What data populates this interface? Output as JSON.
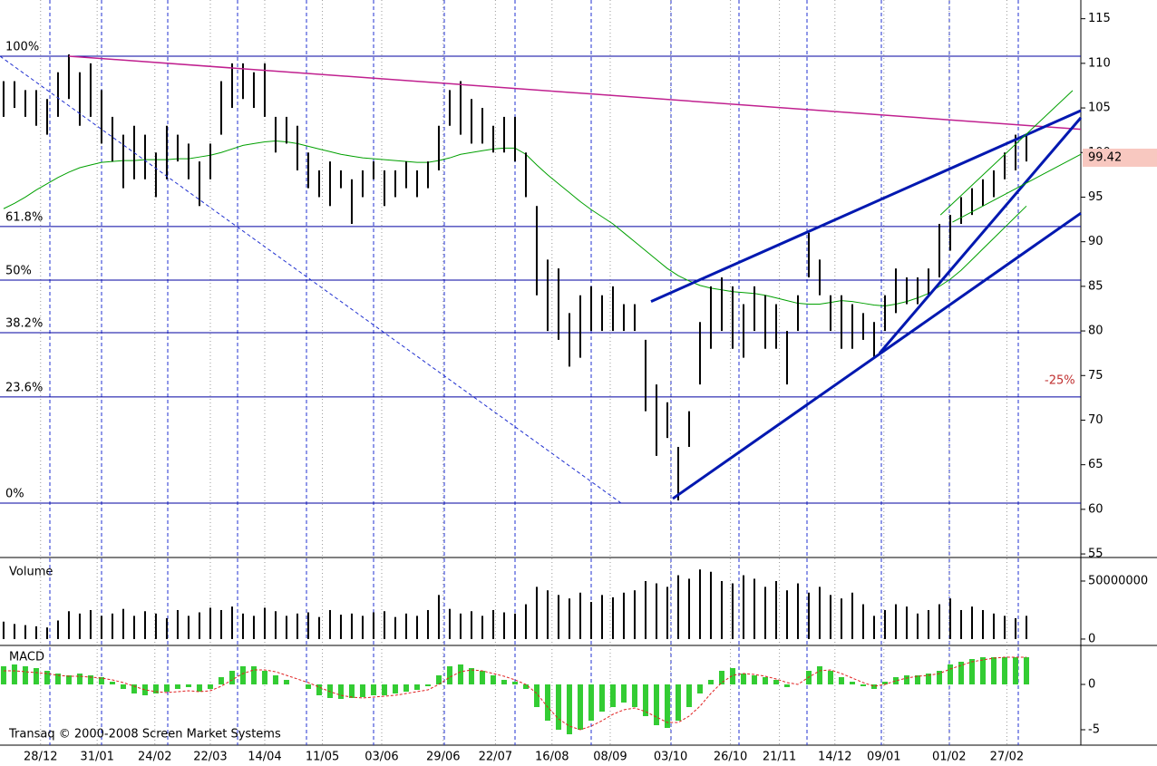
{
  "chart_data": [
    {
      "type": "range-bar",
      "xlim": [
        -0.33,
        99
      ],
      "ylim": [
        54.6,
        117.1
      ],
      "yticks": [
        55,
        60,
        65,
        70,
        75,
        80,
        85,
        90,
        95,
        100,
        105,
        110,
        115
      ],
      "color": "#000000",
      "high": [
        108,
        108,
        107,
        107,
        106,
        109,
        111,
        109,
        110,
        107,
        104,
        102,
        103,
        102,
        100,
        103,
        102,
        101,
        99,
        101,
        108,
        110,
        110,
        109,
        110,
        104,
        104,
        103,
        100,
        98,
        99,
        98,
        97,
        98,
        99,
        98,
        98,
        99,
        98,
        99,
        103,
        107,
        108,
        106,
        105,
        103,
        104,
        104,
        100,
        94,
        88,
        87,
        82,
        84,
        85,
        84,
        85,
        83,
        83,
        79,
        74,
        72,
        67,
        71,
        81,
        85,
        86,
        85,
        83,
        85,
        84,
        83,
        80,
        84,
        91,
        88,
        84,
        84,
        83,
        82,
        81,
        84,
        87,
        86,
        86,
        87,
        92,
        93,
        95,
        96,
        97,
        98,
        100,
        102,
        102
      ],
      "low": [
        104,
        105,
        104,
        103,
        102,
        104,
        106,
        103,
        104,
        101,
        99,
        96,
        97,
        97,
        95,
        97,
        99,
        97,
        94,
        97,
        102,
        105,
        106,
        105,
        104,
        100,
        101,
        98,
        96,
        95,
        94,
        96,
        92,
        95,
        97,
        94,
        95,
        96,
        95,
        96,
        98,
        103,
        102,
        101,
        101,
        100,
        100,
        99,
        95,
        84,
        80,
        79,
        76,
        77,
        80,
        80,
        80,
        80,
        80,
        71,
        66,
        68,
        61,
        67,
        74,
        78,
        80,
        78,
        77,
        80,
        78,
        78,
        74,
        80,
        86,
        84,
        80,
        78,
        78,
        79,
        77,
        80,
        82,
        83,
        83,
        84,
        86,
        89,
        92,
        93,
        94,
        95,
        97,
        98,
        99
      ],
      "ma": {
        "color": "#00a000",
        "values": [
          93.7,
          94.3,
          95,
          95.8,
          96.5,
          97.2,
          97.8,
          98.3,
          98.6,
          98.9,
          99,
          99.1,
          99.1,
          99.2,
          99.2,
          99.2,
          99.3,
          99.3,
          99.5,
          99.7,
          100,
          100.4,
          100.8,
          101,
          101.2,
          101.3,
          101.2,
          101,
          100.7,
          100.4,
          100.1,
          99.8,
          99.6,
          99.4,
          99.3,
          99.2,
          99.1,
          99,
          98.9,
          98.9,
          99.1,
          99.4,
          99.8,
          100,
          100.2,
          100.4,
          100.5,
          100.5,
          99.8,
          98.6,
          97.5,
          96.5,
          95.5,
          94.5,
          93.6,
          92.8,
          92,
          91,
          90,
          89,
          88,
          87,
          86.2,
          85.6,
          85.1,
          84.8,
          84.6,
          84.4,
          84.3,
          84.2,
          84,
          83.7,
          83.4,
          83.1,
          83,
          83,
          83.2,
          83.4,
          83.3,
          83.1,
          82.9,
          82.8,
          83,
          83.3,
          83.7,
          84.2,
          85,
          85.8,
          86.8,
          88,
          89.2,
          90.4,
          91.6,
          92.8,
          94
        ]
      },
      "fib_levels": [
        {
          "label": "100%",
          "value": 110.8
        },
        {
          "label": "61.8%",
          "value": 91.7
        },
        {
          "label": "50%",
          "value": 85.7
        },
        {
          "label": "38.2%",
          "value": 79.8
        },
        {
          "label": "23.6%",
          "value": 72.6
        },
        {
          "label": "0%",
          "value": 60.7
        }
      ],
      "fib_color": "#0000a0",
      "trendlines": [
        {
          "x": [
            6,
            99
          ],
          "y": [
            110.8,
            102.6
          ],
          "color": "#c0208f",
          "width": 1.5,
          "dashed": false
        },
        {
          "x": [
            -0.33,
            56.75
          ],
          "y": [
            110.8,
            60.7
          ],
          "color": "#2030d0",
          "width": 1,
          "dashed": true
        },
        {
          "x": [
            59.5,
            99
          ],
          "y": [
            83.3,
            104.7
          ],
          "color": "#0018b0",
          "width": 3,
          "dashed": false
        },
        {
          "x": [
            61.5,
            99
          ],
          "y": [
            61.2,
            93.2
          ],
          "color": "#0018b0",
          "width": 3,
          "dashed": false
        },
        {
          "x": [
            80.5,
            99
          ],
          "y": [
            77.5,
            103.9
          ],
          "color": "#0018b0",
          "width": 3,
          "dashed": false
        },
        {
          "x": [
            86.1,
            98.25
          ],
          "y": [
            93,
            106.95
          ],
          "color": "#00a000",
          "width": 1,
          "dashed": false
        },
        {
          "x": [
            87.2,
            99
          ],
          "y": [
            92.2,
            99.8
          ],
          "color": "#00a000",
          "width": 1,
          "dashed": false
        }
      ],
      "last_price": 99.42,
      "annotation": "-25%"
    },
    {
      "type": "bar",
      "title": "Volume",
      "ylim": [
        -5500000,
        70300000
      ],
      "yticks": [
        0,
        50000000
      ],
      "color": "#000000",
      "values": [
        15000000,
        13000000,
        12000000,
        11000000,
        10000000,
        16000000,
        24000000,
        22000000,
        25000000,
        20000000,
        22000000,
        26000000,
        20000000,
        24000000,
        22000000,
        18000000,
        25000000,
        20000000,
        23000000,
        27000000,
        25000000,
        28000000,
        22000000,
        20000000,
        27000000,
        24000000,
        20000000,
        22000000,
        23000000,
        19000000,
        25000000,
        21000000,
        22000000,
        20000000,
        23000000,
        24000000,
        19000000,
        22000000,
        20000000,
        25000000,
        38000000,
        26000000,
        22000000,
        24000000,
        20000000,
        25000000,
        23000000,
        22000000,
        30000000,
        45000000,
        42000000,
        38000000,
        35000000,
        40000000,
        32000000,
        38000000,
        36000000,
        40000000,
        42000000,
        50000000,
        48000000,
        45000000,
        55000000,
        52000000,
        60000000,
        58000000,
        50000000,
        48000000,
        55000000,
        52000000,
        45000000,
        50000000,
        42000000,
        48000000,
        40000000,
        45000000,
        38000000,
        35000000,
        40000000,
        30000000,
        20000000,
        25000000,
        30000000,
        28000000,
        22000000,
        25000000,
        30000000,
        35000000,
        25000000,
        28000000,
        25000000,
        22000000,
        20000000,
        18000000,
        20000000
      ]
    },
    {
      "type": "macd",
      "title": "MACD",
      "ylim": [
        -6.7,
        4.3
      ],
      "yticks": [
        -5,
        0
      ],
      "color": "#33cc33",
      "values": [
        2,
        2.2,
        2,
        1.8,
        1.5,
        1.2,
        1,
        1.2,
        1,
        0.8,
        0.3,
        -0.5,
        -1,
        -1.2,
        -1,
        -0.8,
        -0.5,
        -0.3,
        -0.8,
        -0.5,
        0.8,
        1.5,
        2,
        2,
        1.5,
        1,
        0.5,
        0,
        -0.5,
        -1.2,
        -1.5,
        -1.6,
        -1.5,
        -1.4,
        -1.2,
        -1.2,
        -1,
        -0.8,
        -0.6,
        -0.2,
        1,
        2,
        2.2,
        1.8,
        1.5,
        1,
        0.5,
        0.3,
        -0.5,
        -2.5,
        -4,
        -5,
        -5.5,
        -5,
        -4,
        -3,
        -2.5,
        -2,
        -2.5,
        -3.5,
        -4.5,
        -4.8,
        -4,
        -2.5,
        -1,
        0.5,
        1.5,
        1.8,
        1.2,
        1,
        0.8,
        0.5,
        -0.3,
        0,
        1.5,
        2,
        1.5,
        0.8,
        0.3,
        -0.2,
        -0.5,
        0.3,
        0.8,
        1,
        1,
        1.2,
        1.5,
        2.2,
        2.5,
        2.8,
        3,
        3,
        3,
        3,
        3
      ],
      "signal": {
        "color": "#e02020",
        "values": [
          1.5,
          1.5,
          1.4,
          1.3,
          1.2,
          1,
          0.9,
          0.9,
          0.8,
          0.7,
          0.5,
          0.2,
          -0.2,
          -0.6,
          -0.8,
          -0.9,
          -0.8,
          -0.7,
          -0.8,
          -0.7,
          -0.2,
          0.5,
          1.2,
          1.6,
          1.6,
          1.4,
          1,
          0.6,
          0.2,
          -0.3,
          -0.8,
          -1.2,
          -1.4,
          -1.5,
          -1.4,
          -1.3,
          -1.2,
          -1,
          -0.8,
          -0.6,
          0,
          0.8,
          1.4,
          1.6,
          1.5,
          1.2,
          0.9,
          0.5,
          0,
          -1,
          -2.5,
          -3.8,
          -4.6,
          -5,
          -4.6,
          -4,
          -3.3,
          -2.8,
          -2.6,
          -3,
          -3.6,
          -4.2,
          -4.2,
          -3.5,
          -2.4,
          -1,
          0.2,
          1,
          1.2,
          1.1,
          0.9,
          0.6,
          0.2,
          0,
          0.8,
          1.5,
          1.6,
          1.2,
          0.7,
          0.2,
          -0.2,
          0,
          0.4,
          0.7,
          0.9,
          1,
          1.2,
          1.7,
          2.1,
          2.5,
          2.7,
          2.9,
          3,
          3,
          3
        ]
      },
      "xticks": [
        {
          "value": 3.4,
          "label": "28/12"
        },
        {
          "value": 8.6,
          "label": "31/01"
        },
        {
          "value": 13.9,
          "label": "24/02"
        },
        {
          "value": 19,
          "label": "22/03"
        },
        {
          "value": 24,
          "label": "14/04"
        },
        {
          "value": 29.3,
          "label": "11/05"
        },
        {
          "value": 34.75,
          "label": "03/06"
        },
        {
          "value": 40.4,
          "label": "29/06"
        },
        {
          "value": 45.2,
          "label": "22/07"
        },
        {
          "value": 50.4,
          "label": "16/08"
        },
        {
          "value": 55.75,
          "label": "08/09"
        },
        {
          "value": 61.3,
          "label": "03/10"
        },
        {
          "value": 66.8,
          "label": "26/10"
        },
        {
          "value": 71.3,
          "label": "21/11"
        },
        {
          "value": 76.4,
          "label": "14/12"
        },
        {
          "value": 80.9,
          "label": "09/01"
        },
        {
          "value": 86.9,
          "label": "01/02"
        },
        {
          "value": 92.2,
          "label": "27/02"
        }
      ],
      "footer": "Transaq © 2000-2008 Screen Market Systems"
    }
  ]
}
